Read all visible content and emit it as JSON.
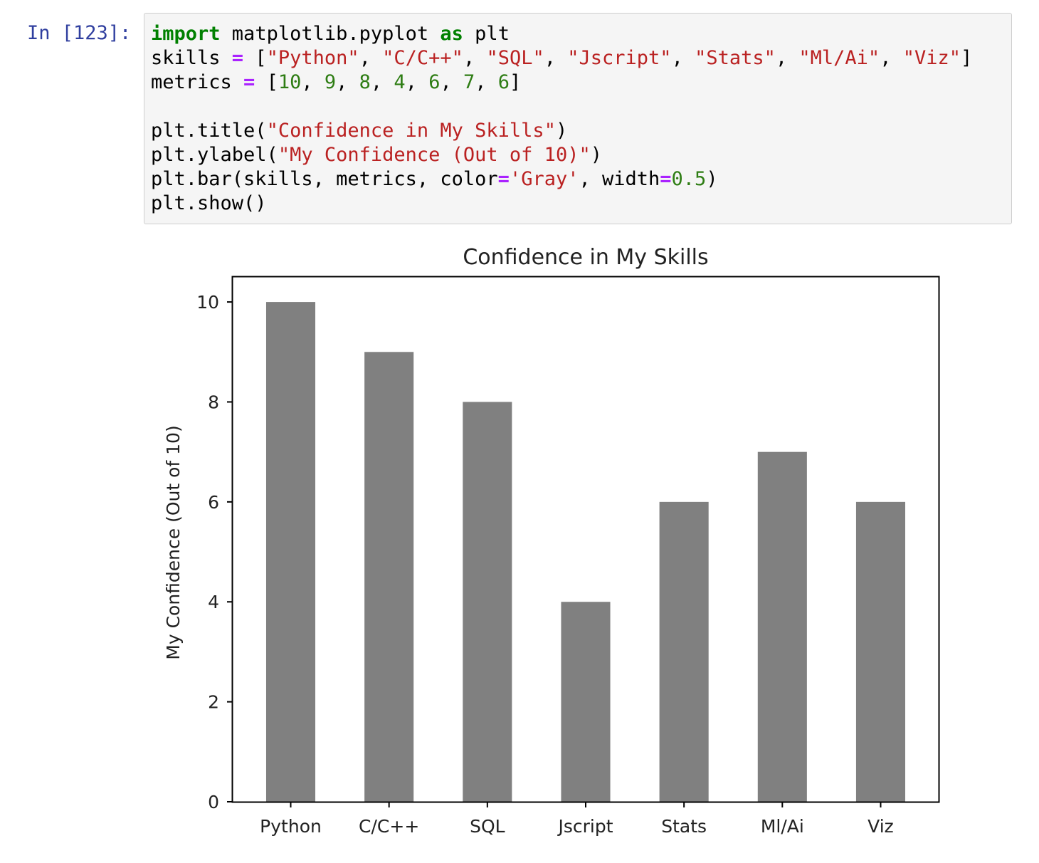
{
  "cell": {
    "prompt": "In [123]:",
    "code_lines": [
      [
        {
          "t": "import",
          "c": "kw"
        },
        {
          "t": " matplotlib.pyplot "
        },
        {
          "t": "as",
          "c": "kw"
        },
        {
          "t": " plt"
        }
      ],
      [
        {
          "t": "skills "
        },
        {
          "t": "=",
          "c": "op"
        },
        {
          "t": " ["
        },
        {
          "t": "\"Python\"",
          "c": "str"
        },
        {
          "t": ", "
        },
        {
          "t": "\"C/C++\"",
          "c": "str"
        },
        {
          "t": ", "
        },
        {
          "t": "\"SQL\"",
          "c": "str"
        },
        {
          "t": ", "
        },
        {
          "t": "\"Jscript\"",
          "c": "str"
        },
        {
          "t": ", "
        },
        {
          "t": "\"Stats\"",
          "c": "str"
        },
        {
          "t": ", "
        },
        {
          "t": "\"Ml/Ai\"",
          "c": "str"
        },
        {
          "t": ", "
        },
        {
          "t": "\"Viz\"",
          "c": "str"
        },
        {
          "t": "]"
        }
      ],
      [
        {
          "t": "metrics "
        },
        {
          "t": "=",
          "c": "op"
        },
        {
          "t": " ["
        },
        {
          "t": "10",
          "c": "num"
        },
        {
          "t": ", "
        },
        {
          "t": "9",
          "c": "num"
        },
        {
          "t": ", "
        },
        {
          "t": "8",
          "c": "num"
        },
        {
          "t": ", "
        },
        {
          "t": "4",
          "c": "num"
        },
        {
          "t": ", "
        },
        {
          "t": "6",
          "c": "num"
        },
        {
          "t": ", "
        },
        {
          "t": "7",
          "c": "num"
        },
        {
          "t": ", "
        },
        {
          "t": "6",
          "c": "num"
        },
        {
          "t": "]"
        }
      ],
      [],
      [
        {
          "t": "plt.title("
        },
        {
          "t": "\"Confidence in My Skills\"",
          "c": "str"
        },
        {
          "t": ")"
        }
      ],
      [
        {
          "t": "plt.ylabel("
        },
        {
          "t": "\"My Confidence (Out of 10)\"",
          "c": "str"
        },
        {
          "t": ")"
        }
      ],
      [
        {
          "t": "plt.bar(skills, metrics, color"
        },
        {
          "t": "=",
          "c": "op"
        },
        {
          "t": "'Gray'",
          "c": "str"
        },
        {
          "t": ", width"
        },
        {
          "t": "=",
          "c": "op"
        },
        {
          "t": "0.5",
          "c": "num"
        },
        {
          "t": ")"
        }
      ],
      [
        {
          "t": "plt.show()"
        }
      ]
    ]
  },
  "chart_data": {
    "type": "bar",
    "title": "Confidence in My Skills",
    "xlabel": "",
    "ylabel": "My Confidence (Out of 10)",
    "categories": [
      "Python",
      "C/C++",
      "SQL",
      "Jscript",
      "Stats",
      "Ml/Ai",
      "Viz"
    ],
    "values": [
      10,
      9,
      8,
      4,
      6,
      7,
      6
    ],
    "ylim": [
      0,
      10.5
    ],
    "yticks": [
      0,
      2,
      4,
      6,
      8,
      10
    ],
    "bar_color": "#808080",
    "bar_width": 0.5,
    "grid": false
  }
}
